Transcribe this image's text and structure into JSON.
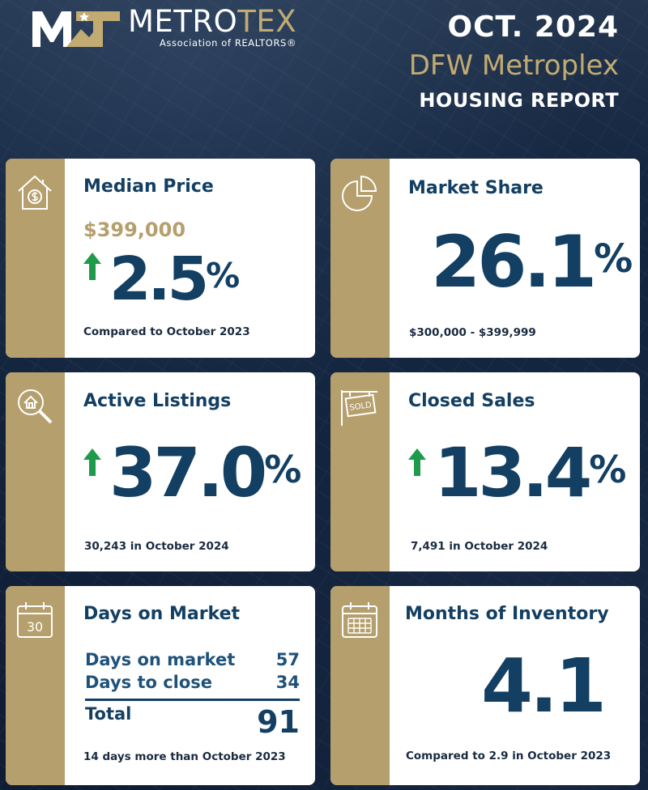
{
  "header": {
    "logo_mark_letters": "MT",
    "brand_metro": "METRO",
    "brand_tex": "TEX",
    "brand_sub": "Association of REALTORS",
    "brand_reg": "®",
    "date": "OCT. 2024",
    "region": "DFW Metroplex",
    "report_title": "HOUSING REPORT"
  },
  "colors": {
    "navy": "#133f63",
    "gold": "#b59f6c",
    "up_arrow": "#1e9b4a"
  },
  "cards": {
    "median_price": {
      "icon": "house-dollar-icon",
      "title": "Median Price",
      "price": "$399,000",
      "trend": "up",
      "value": "2.5",
      "unit": "%",
      "note": "Compared to October 2023"
    },
    "market_share": {
      "icon": "pie-chart-icon",
      "title": "Market Share",
      "value": "26.1",
      "unit": "%",
      "note": "$300,000 - $399,999"
    },
    "active_listings": {
      "icon": "house-search-icon",
      "title": "Active Listings",
      "trend": "up",
      "value": "37.0",
      "unit": "%",
      "note": "30,243 in October 2024"
    },
    "closed_sales": {
      "icon": "sold-sign-icon",
      "title": "Closed Sales",
      "trend": "up",
      "value": "13.4",
      "unit": "%",
      "note": "7,491 in October 2024"
    },
    "days_on_market": {
      "icon": "calendar-30-icon",
      "icon_text": "30",
      "title": "Days on Market",
      "rows": [
        {
          "label": "Days on market",
          "value": "57"
        },
        {
          "label": "Days to close",
          "value": "34"
        }
      ],
      "total_label": "Total",
      "total_value": "91",
      "note": "14 days more than October 2023"
    },
    "months_inventory": {
      "icon": "calendar-grid-icon",
      "title": "Months of Inventory",
      "value": "4.1",
      "note": "Compared to 2.9 in October 2023"
    }
  }
}
